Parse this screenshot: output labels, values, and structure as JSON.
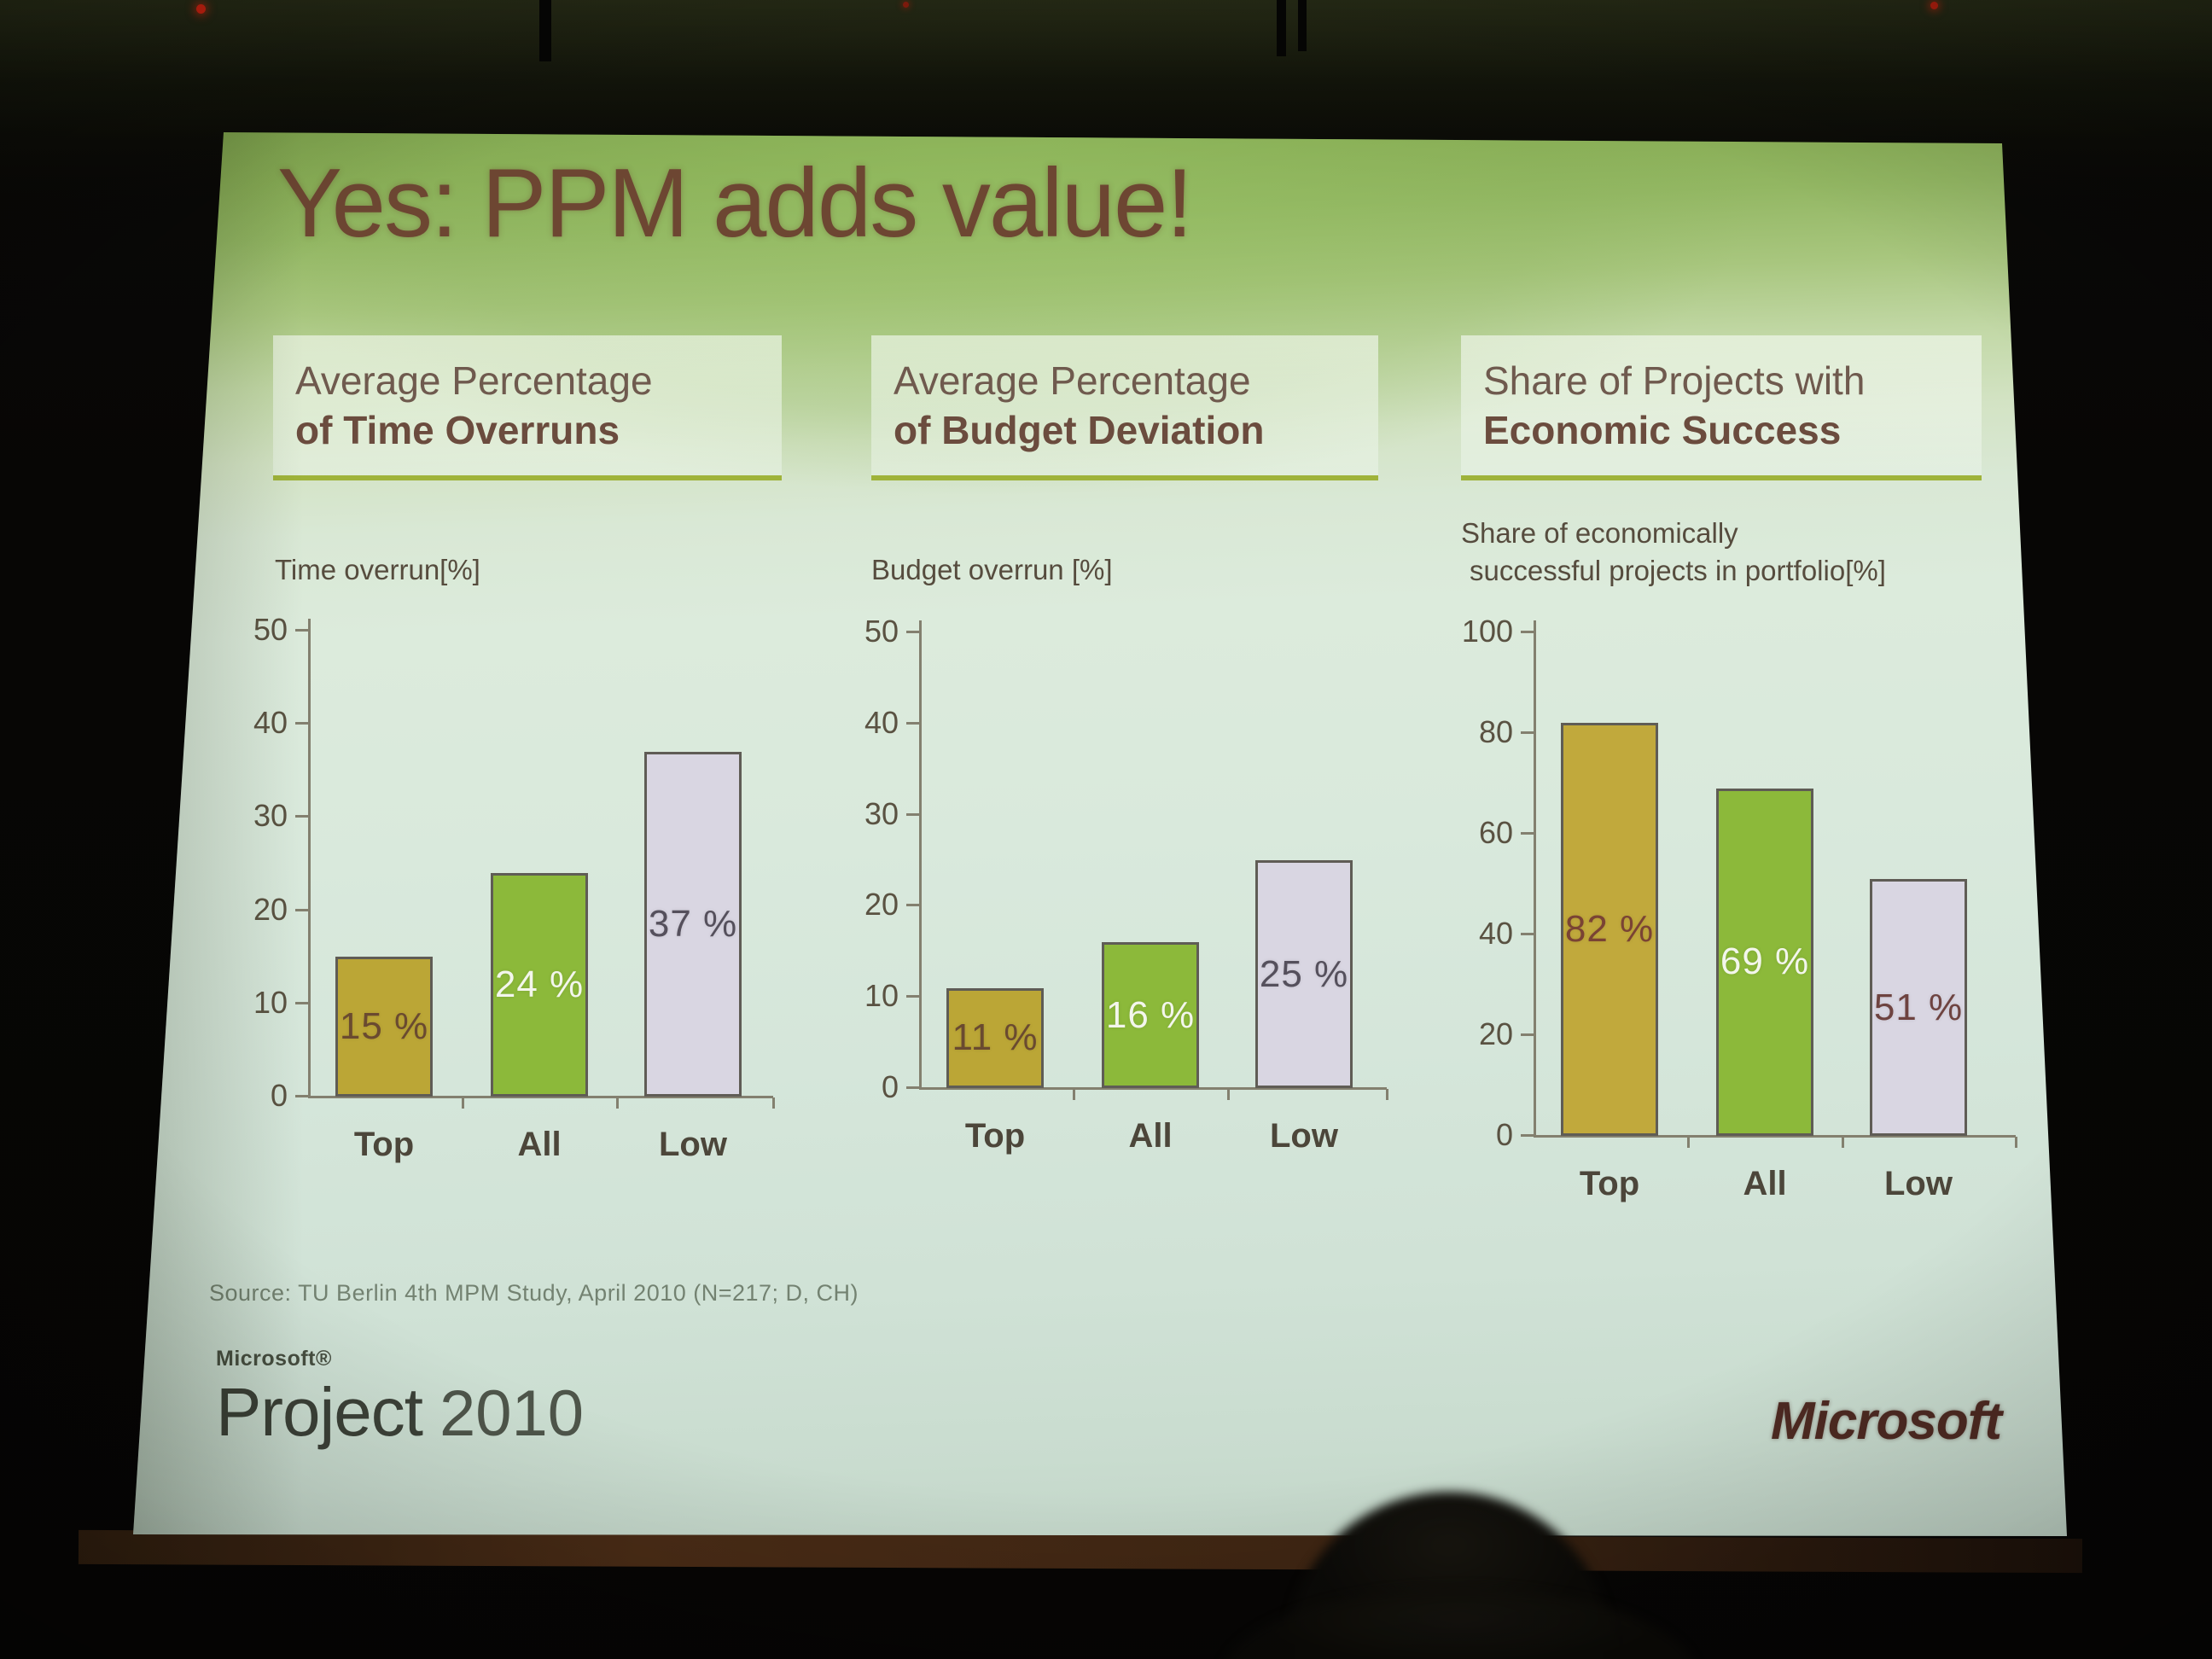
{
  "slide": {
    "title": "Yes: PPM adds value!",
    "source_note": "Source: TU Berlin 4th MPM Study, April 2010 (N=217; D, CH)",
    "branding": {
      "product_small": "Microsoft®",
      "product_name": "Project",
      "product_year": "2010",
      "company_logo": "Microsoft"
    },
    "colors": {
      "title_text": "#6d4632",
      "accent_underline": "#9fb33a",
      "bar_top": "#bba636",
      "bar_all": "#8cb93a",
      "bar_low": "#d9d6e2"
    }
  },
  "chart_data": [
    {
      "type": "bar",
      "title_line1": "Average Percentage",
      "title_line2": "of Time Overruns",
      "ylabel_lines": [
        "Time overrun[%]"
      ],
      "categories": [
        "Top",
        "All",
        "Low"
      ],
      "values": [
        15,
        24,
        37
      ],
      "data_labels": [
        "15 %",
        "24 %",
        "37 %"
      ],
      "yticks": [
        0,
        10,
        20,
        30,
        40,
        50
      ],
      "ylim": [
        0,
        50
      ],
      "grid": false,
      "legend": "none",
      "bar_colors": [
        "#bba636",
        "#8cb93a",
        "#d9d6e2"
      ],
      "data_label_colors": [
        "#6a4a30",
        "#f3f6ec",
        "#55505c"
      ]
    },
    {
      "type": "bar",
      "title_line1": "Average Percentage",
      "title_line2": "of Budget Deviation",
      "ylabel_lines": [
        "Budget overrun [%]"
      ],
      "categories": [
        "Top",
        "All",
        "Low"
      ],
      "values": [
        11,
        16,
        25
      ],
      "data_labels": [
        "11 %",
        "16 %",
        "25 %"
      ],
      "yticks": [
        0,
        10,
        20,
        30,
        40,
        50
      ],
      "ylim": [
        0,
        50
      ],
      "grid": false,
      "legend": "none",
      "bar_colors": [
        "#bba636",
        "#8cb93a",
        "#d9d6e2"
      ],
      "data_label_colors": [
        "#6a4a30",
        "#f3f6ec",
        "#55505c"
      ]
    },
    {
      "type": "bar",
      "title_line1": "Share of  Projects with",
      "title_line2": "Economic Success",
      "ylabel_lines": [
        "Share of economically",
        "successful projects in portfolio[%]"
      ],
      "categories": [
        "Top",
        "All",
        "Low"
      ],
      "values": [
        82,
        69,
        51
      ],
      "data_labels": [
        "82 %",
        "69 %",
        "51 %"
      ],
      "yticks": [
        0,
        20,
        40,
        60,
        80,
        100
      ],
      "ylim": [
        0,
        100
      ],
      "grid": false,
      "legend": "none",
      "bar_colors": [
        "#c1a93c",
        "#8cb93a",
        "#d9d6e2"
      ],
      "data_label_colors": [
        "#7a4334",
        "#f3f6ec",
        "#6e4340"
      ]
    }
  ]
}
